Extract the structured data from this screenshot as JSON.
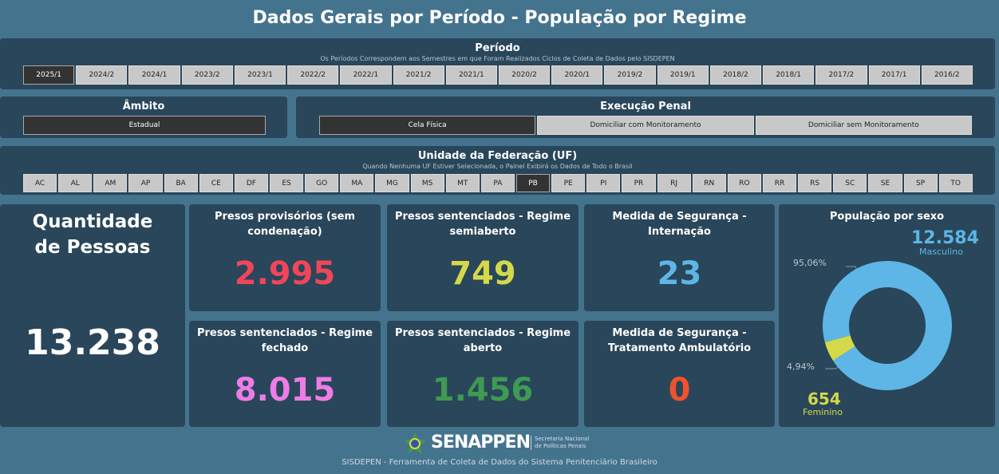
{
  "title": "Dados Gerais por Período - População por Regime",
  "periodo": {
    "title": "Período",
    "subtitle": "Os Períodos Correspondem aos Semestres em que Foram Realizados Ciclos de Coleta de Dados pelo SISDEPEN",
    "options": [
      "2025/1",
      "2024/2",
      "2024/1",
      "2023/2",
      "2023/1",
      "2022/2",
      "2022/1",
      "2021/2",
      "2021/1",
      "2020/2",
      "2020/1",
      "2019/2",
      "2019/1",
      "2018/2",
      "2018/1",
      "2017/2",
      "2017/1",
      "2016/2"
    ],
    "selected": "2025/1"
  },
  "ambito": {
    "title": "Âmbito",
    "options": [
      "Estadual"
    ],
    "selected": "Estadual"
  },
  "execucao": {
    "title": "Execução Penal",
    "options": [
      "Cela Física",
      "Domiciliar com Monitoramento",
      "Domiciliar sem Monitoramento"
    ],
    "selected": "Cela Física"
  },
  "uf": {
    "title": "Unidade da Federação (UF)",
    "subtitle": "Quando Nenhuma UF Estiver Selecionada, o Painel Exibirá os Dados de Todo o Brasil",
    "options": [
      "AC",
      "AL",
      "AM",
      "AP",
      "BA",
      "CE",
      "DF",
      "ES",
      "GO",
      "MA",
      "MG",
      "MS",
      "MT",
      "PA",
      "PB",
      "PE",
      "PI",
      "PR",
      "RJ",
      "RN",
      "RO",
      "RR",
      "RS",
      "SC",
      "SE",
      "SP",
      "TO"
    ],
    "selected": "PB"
  },
  "total": {
    "label": "Quantidade de Pessoas",
    "value": "13.238"
  },
  "cards": [
    {
      "label": "Presos provisórios (sem condenação)",
      "value": "2.995",
      "color": "#f0465a"
    },
    {
      "label": "Presos sentenciados - Regime semiaberto",
      "value": "749",
      "color": "#d4d94a"
    },
    {
      "label": "Medida de Segurança - Internação",
      "value": "23",
      "color": "#5db6e6"
    },
    {
      "label": "Presos sentenciados - Regime fechado",
      "value": "8.015",
      "color": "#ee7ce6"
    },
    {
      "label": "Presos sentenciados - Regime aberto",
      "value": "1.456",
      "color": "#3f9a52"
    },
    {
      "label": "Medida de Segurança - Tratamento Ambulatório",
      "value": "0",
      "color": "#f0522e"
    }
  ],
  "sexo": {
    "title": "População por sexo",
    "masculino": {
      "label": "Masculino",
      "value": "12.584",
      "pct": "95,06%",
      "share": 95.06,
      "color": "#5db6e6"
    },
    "feminino": {
      "label": "Feminino",
      "value": "654",
      "pct": "4,94%",
      "share": 4.94,
      "color": "#d4d94a"
    }
  },
  "footer": {
    "logo": "SENAPPEN",
    "logo_sub1": "Secretaria Nacional",
    "logo_sub2": "de Políticas Penais",
    "text": "SISDEPEN - Ferramenta de Coleta de Dados do Sistema Penitenciário Brasileiro"
  }
}
